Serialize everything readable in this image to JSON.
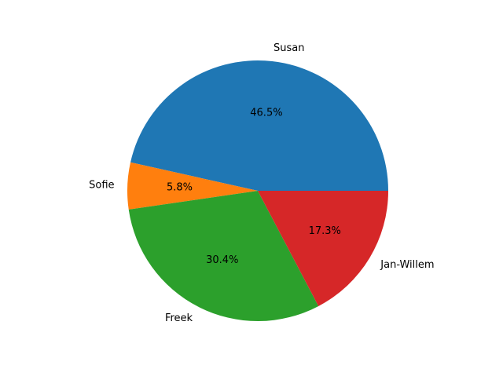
{
  "chart_data": {
    "type": "pie",
    "labels": [
      "Susan",
      "Sofie",
      "Freek",
      "Jan-Willem"
    ],
    "values": [
      46.5,
      5.8,
      30.4,
      17.3
    ],
    "value_labels": [
      "46.5%",
      "5.8%",
      "30.4%",
      "17.3%"
    ],
    "colors": [
      "#1f77b4",
      "#ff7f0e",
      "#2ca02c",
      "#d62728"
    ],
    "start_angle_deg": 0,
    "direction": "counterclockwise"
  }
}
